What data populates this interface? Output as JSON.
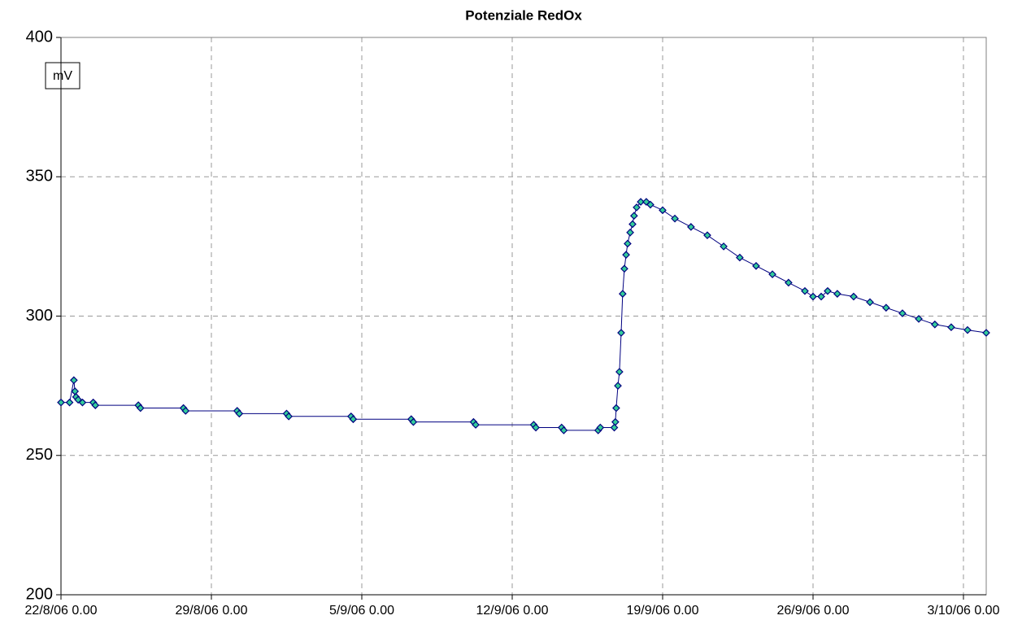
{
  "chart_data": {
    "type": "line",
    "title": "Potenziale RedOx",
    "annotation": "mV",
    "x": [
      0,
      0.4,
      0.6,
      0.65,
      0.7,
      0.8,
      1.0,
      1.5,
      1.6,
      3.6,
      3.7,
      5.7,
      5.8,
      8.2,
      8.3,
      10.5,
      10.6,
      13.5,
      13.6,
      16.3,
      16.4,
      19.2,
      19.3,
      22.0,
      22.1,
      23.3,
      23.4,
      25.0,
      25.1,
      25.75,
      25.8,
      25.84,
      25.92,
      25.99,
      26.07,
      26.14,
      26.22,
      26.3,
      26.37,
      26.49,
      26.6,
      26.67,
      26.79,
      26.98,
      27.24,
      27.43,
      28.0,
      28.57,
      29.32,
      30.08,
      30.84,
      31.59,
      32.35,
      33.11,
      33.86,
      34.62,
      35.0,
      35.38,
      35.68,
      36.13,
      36.89,
      37.65,
      38.4,
      39.16,
      39.92,
      40.67,
      41.43,
      42.19,
      43.06
    ],
    "series": [
      {
        "name": "RedOx",
        "color": "#000080",
        "marker_color": "#33cc99",
        "values": [
          269,
          269,
          277,
          273,
          271,
          270,
          269,
          269,
          268,
          268,
          267,
          267,
          266,
          266,
          265,
          265,
          264,
          264,
          263,
          263,
          262,
          262,
          261,
          261,
          260,
          260,
          259,
          259,
          260,
          260,
          262,
          267,
          275,
          280,
          294,
          308,
          317,
          322,
          326,
          330,
          333,
          336,
          339,
          341,
          341,
          340,
          338,
          335,
          332,
          329,
          325,
          321,
          318,
          315,
          312,
          309,
          307,
          307,
          309,
          308,
          307,
          305,
          303,
          301,
          299,
          297,
          296,
          295,
          294
        ]
      }
    ],
    "xlim": [
      0,
      43.06
    ],
    "xticks": [
      {
        "value": 0,
        "label": "22/8/06 0.00"
      },
      {
        "value": 7,
        "label": "29/8/06 0.00"
      },
      {
        "value": 14,
        "label": "5/9/06 0.00"
      },
      {
        "value": 21,
        "label": "12/9/06 0.00"
      },
      {
        "value": 28,
        "label": "19/9/06 0.00"
      },
      {
        "value": 35,
        "label": "26/9/06 0.00"
      },
      {
        "value": 42,
        "label": "3/10/06 0.00"
      }
    ],
    "ylim": [
      200,
      400
    ],
    "yticks": [
      200,
      250,
      300,
      350,
      400
    ],
    "grid": true
  }
}
